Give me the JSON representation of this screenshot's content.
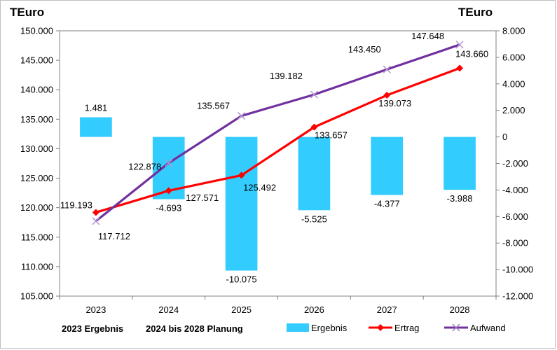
{
  "chart_data": {
    "type": "bar-line-combo",
    "left_axis_unit": "TEuro",
    "right_axis_unit": "TEuro",
    "categories": [
      "2023",
      "2024",
      "2025",
      "2026",
      "2027",
      "2028"
    ],
    "left_axis": {
      "min": 105000,
      "max": 150000,
      "step": 5000,
      "tick_labels": [
        "105.000",
        "110.000",
        "115.000",
        "120.000",
        "125.000",
        "130.000",
        "135.000",
        "140.000",
        "145.000",
        "150.000"
      ]
    },
    "right_axis": {
      "min": -12000,
      "max": 8000,
      "step": 2000,
      "tick_labels": [
        "-12.000",
        "-10.000",
        "-8.000",
        "-6.000",
        "-4.000",
        "-2.000",
        "0",
        "2.000",
        "4.000",
        "6.000",
        "8.000"
      ]
    },
    "series": [
      {
        "name": "Ergebnis",
        "kind": "bar",
        "axis": "right",
        "color": "#33ccff",
        "values": [
          1481,
          -4693,
          -10075,
          -5525,
          -4377,
          -3988
        ],
        "labels": [
          "1.481",
          "-4.693",
          "-10.075",
          "-5.525",
          "-4.377",
          "-3.988"
        ]
      },
      {
        "name": "Ertrag",
        "kind": "line",
        "axis": "left",
        "color": "#ff0000",
        "marker": "diamond",
        "values": [
          119193,
          122878,
          125492,
          133657,
          139073,
          143660
        ],
        "labels": [
          "119.193",
          "122.878",
          "125.492",
          "133.657",
          "139.073",
          "143.660"
        ]
      },
      {
        "name": "Aufwand",
        "kind": "line",
        "axis": "left",
        "color": "#7030a0",
        "marker": "x",
        "values": [
          117712,
          127571,
          135567,
          139182,
          143450,
          147648
        ],
        "labels": [
          "117.712",
          "127.571",
          "135.567",
          "139.182",
          "143.450",
          "147.648"
        ]
      }
    ],
    "footnotes": [
      "2023 Ergebnis",
      "2024 bis 2028 Planung"
    ],
    "legend_position": "bottom-right"
  }
}
